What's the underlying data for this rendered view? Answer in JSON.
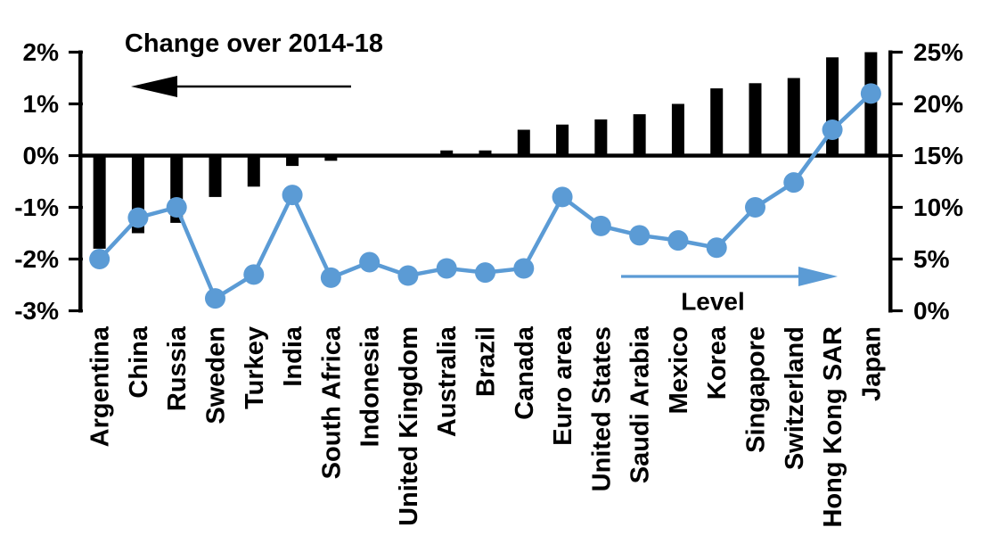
{
  "chart_data": {
    "type": "bar",
    "subtype": "dual-axis bar and line",
    "categories": [
      "Argentina",
      "China",
      "Russia",
      "Sweden",
      "Turkey",
      "India",
      "South Africa",
      "Indonesia",
      "United Kingdom",
      "Australia",
      "Brazil",
      "Canada",
      "Euro area",
      "United States",
      "Saudi Arabia",
      "Mexico",
      "Korea",
      "Singapore",
      "Switzerland",
      "Hong Kong SAR",
      "Japan"
    ],
    "series": [
      {
        "name": "Change over 2014-18",
        "type": "bar",
        "axis": "left",
        "color": "#000000",
        "values": [
          -1.8,
          -1.5,
          -1.3,
          -0.8,
          -0.6,
          -0.2,
          -0.1,
          0,
          0,
          0.1,
          0.1,
          0.5,
          0.6,
          0.7,
          0.8,
          1.0,
          1.3,
          1.4,
          1.5,
          1.9,
          2.0
        ]
      },
      {
        "name": "Level",
        "type": "line",
        "axis": "right",
        "color": "#5B9BD5",
        "values": [
          5.0,
          9.0,
          10.0,
          1.2,
          3.5,
          11.2,
          3.2,
          4.7,
          3.4,
          4.1,
          3.7,
          4.1,
          11.0,
          8.2,
          7.3,
          6.8,
          6.1,
          10.0,
          12.4,
          17.5,
          21.0
        ]
      }
    ],
    "left_axis": {
      "min": -3,
      "max": 2,
      "tick_labels": [
        "2%",
        "1%",
        "0%",
        "-1%",
        "-2%",
        "-3%"
      ],
      "grid": false
    },
    "right_axis": {
      "min": 0,
      "max": 25,
      "tick_labels": [
        "25%",
        "20%",
        "15%",
        "10%",
        "5%",
        "0%"
      ],
      "grid": false
    },
    "annotations": [
      {
        "text": "Change over 2014-18",
        "arrow": "left",
        "arrow_color": "#000000",
        "text_color": "#000000"
      },
      {
        "text": "Level",
        "arrow": "right",
        "arrow_color": "#5B9BD5",
        "text_color": "#000000"
      }
    ],
    "legend_position": "none",
    "title": "",
    "xlabel": "",
    "ylabel_left": "Change over 2014-18",
    "ylabel_right": "Level"
  }
}
